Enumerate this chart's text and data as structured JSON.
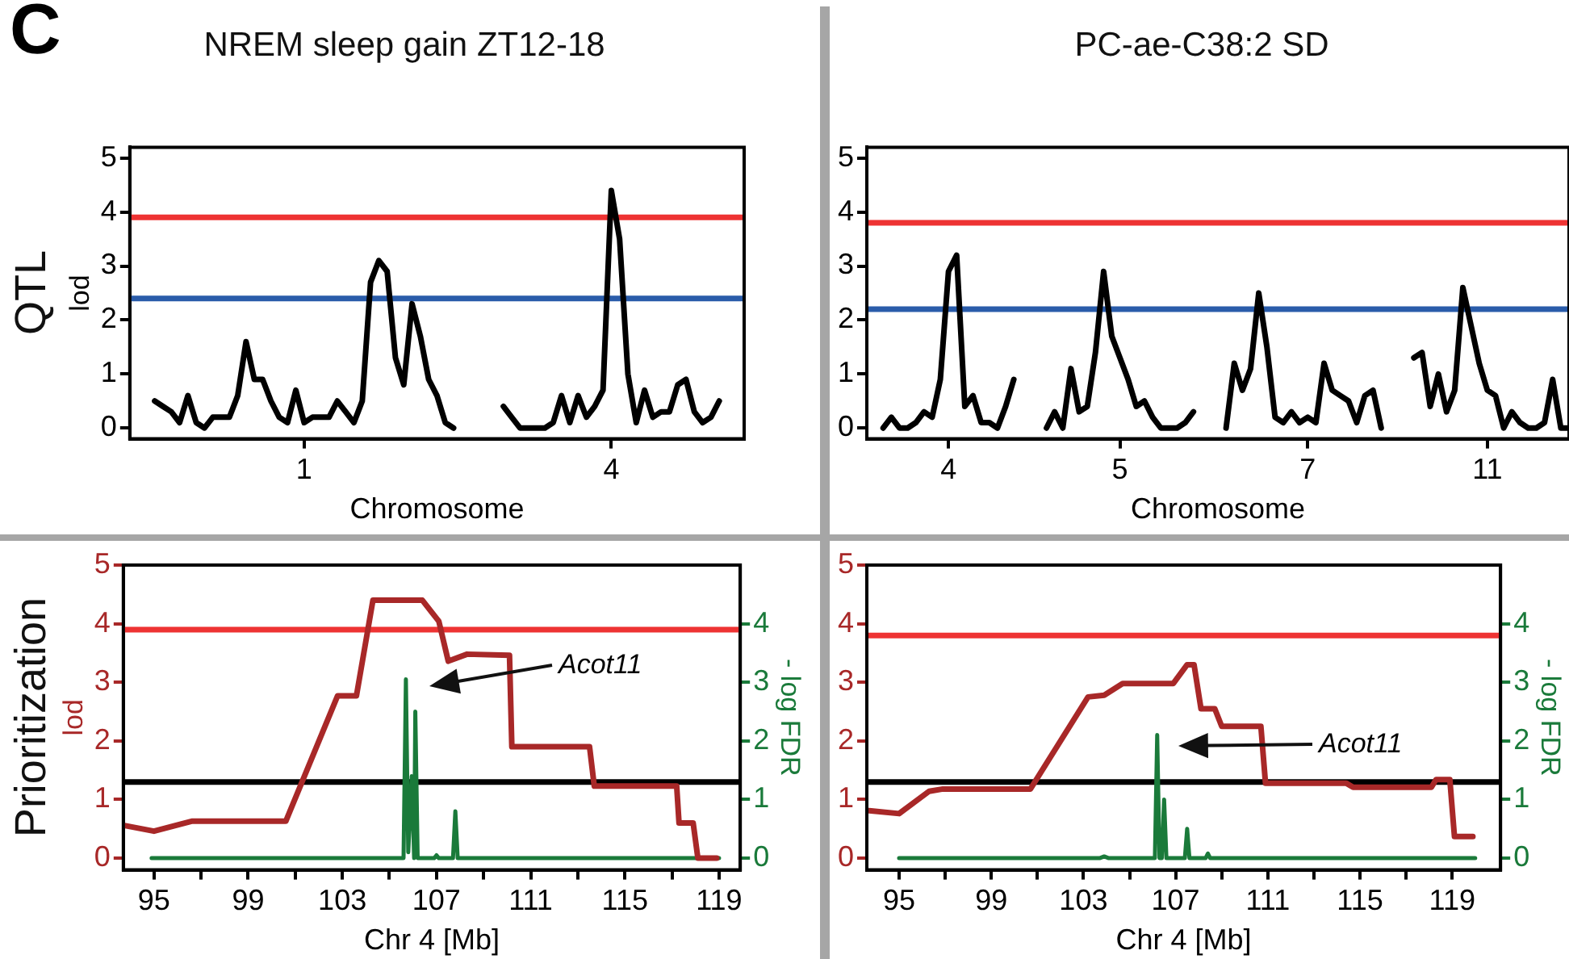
{
  "chart_data": [
    {
      "type": "line",
      "title": "NREM sleep gain ZT12-18",
      "xlabel": "Chromosome",
      "ylabel": "lod",
      "annotations": [
        "C",
        "QTL"
      ],
      "categories": [
        null,
        null,
        null,
        null,
        null,
        null,
        null,
        null,
        null,
        null,
        null,
        null,
        null,
        null,
        null,
        null,
        null,
        null,
        null,
        null,
        null,
        "1",
        null,
        null,
        null,
        null,
        null,
        null,
        null,
        null,
        null,
        null,
        null,
        null,
        null,
        null,
        null,
        null,
        null,
        null,
        null,
        null,
        null,
        null,
        null,
        null,
        null,
        null,
        null,
        null,
        null,
        null,
        null,
        null,
        null,
        null,
        null,
        null,
        "4",
        null,
        null,
        null,
        null,
        null,
        null,
        null,
        null,
        null,
        null,
        null,
        null,
        null,
        null,
        null,
        null
      ],
      "series": [
        {
          "color": "#000000",
          "values": [
            null,
            null,
            null,
            0.5,
            0.4,
            0.3,
            0.1,
            0.6,
            0.1,
            0,
            0.2,
            0.2,
            0.2,
            0.6,
            1.6,
            0.9,
            0.9,
            0.5,
            0.2,
            0.1,
            0.7,
            0.1,
            0.2,
            0.2,
            0.2,
            0.5,
            0.3,
            0.1,
            0.5,
            2.7,
            3.1,
            2.9,
            1.3,
            0.8,
            2.3,
            1.7,
            0.9,
            0.6,
            0.1,
            0,
            null,
            null,
            null,
            null,
            null,
            0.4,
            0.2,
            0,
            0,
            0,
            0,
            0.1,
            0.6,
            0.1,
            0.6,
            0.2,
            0.4,
            0.7,
            4.4,
            3.5,
            1.0,
            0.1,
            0.7,
            0.2,
            0.3,
            0.3,
            0.8,
            0.9,
            0.3,
            0.1,
            0.2,
            0.5,
            null,
            null,
            null
          ]
        }
      ],
      "ylim": [
        -0.2,
        5.2
      ],
      "yticks": [
        0,
        1,
        2,
        3,
        4,
        5
      ],
      "ref_lines": [
        {
          "axis": "y",
          "value": 3.9,
          "color": "#ee3333"
        },
        {
          "axis": "y",
          "value": 2.4,
          "color": "#2a5caa"
        }
      ]
    },
    {
      "type": "line",
      "title": "PC-ae-C38:2 SD",
      "xlabel": "Chromosome",
      "categories": [
        null,
        null,
        null,
        null,
        null,
        null,
        null,
        null,
        null,
        null,
        "4",
        null,
        null,
        null,
        null,
        null,
        null,
        null,
        null,
        null,
        null,
        null,
        null,
        null,
        null,
        null,
        null,
        null,
        null,
        null,
        null,
        "5",
        null,
        null,
        null,
        null,
        null,
        null,
        null,
        null,
        null,
        null,
        null,
        null,
        null,
        null,
        null,
        null,
        null,
        null,
        null,
        null,
        null,
        null,
        "7",
        null,
        null,
        null,
        null,
        null,
        null,
        null,
        null,
        null,
        null,
        null,
        null,
        null,
        null,
        null,
        null,
        null,
        null,
        null,
        null,
        null,
        "11",
        null,
        null,
        null,
        null,
        null,
        null,
        null,
        null,
        null,
        null
      ],
      "series": [
        {
          "color": "#000000",
          "values": [
            null,
            null,
            0,
            0.2,
            0,
            0,
            0.1,
            0.3,
            0.2,
            0.9,
            2.9,
            3.2,
            0.4,
            0.6,
            0.1,
            0.1,
            0,
            0.4,
            0.9,
            null,
            null,
            null,
            0,
            0.3,
            0,
            1.1,
            0.3,
            0.4,
            1.4,
            2.9,
            1.7,
            1.3,
            0.9,
            0.4,
            0.5,
            0.2,
            0,
            0,
            0,
            0.1,
            0.3,
            null,
            null,
            null,
            0,
            1.2,
            0.7,
            1.1,
            2.5,
            1.5,
            0.2,
            0.1,
            0.3,
            0.1,
            0.2,
            0.1,
            1.2,
            0.7,
            0.6,
            0.5,
            0.1,
            0.6,
            0.7,
            0,
            null,
            null,
            null,
            1.3,
            1.4,
            0.4,
            1.0,
            0.3,
            0.7,
            2.6,
            1.9,
            1.2,
            0.7,
            0.6,
            0,
            0.3,
            0.1,
            0,
            0,
            0.1,
            0.9,
            0,
            0
          ]
        }
      ],
      "ylim": [
        -0.2,
        5.2
      ],
      "yticks": [
        0,
        1,
        2,
        3,
        4,
        5
      ],
      "ref_lines": [
        {
          "axis": "y",
          "value": 3.8,
          "color": "#ee3333"
        },
        {
          "axis": "y",
          "value": 2.2,
          "color": "#2a5caa"
        }
      ]
    },
    {
      "type": "line",
      "xlabel": "Chr 4 [Mb]",
      "ylabel": "lod",
      "y2label": "- log FDR",
      "annotations": [
        "Prioritization",
        "Acot11"
      ],
      "series": [
        {
          "color": "#a82828",
          "x": [
            93.7,
            95.0,
            96.6,
            100.6,
            102.8,
            103.6,
            104.3,
            106.4,
            107.1,
            107.5,
            108.3,
            110.1,
            110.2,
            113.5,
            113.7,
            117.2,
            117.3,
            117.9,
            118.1,
            118.9
          ],
          "values": [
            0.56,
            0.46,
            0.63,
            0.63,
            2.77,
            2.77,
            4.4,
            4.4,
            4.04,
            3.36,
            3.48,
            3.46,
            1.9,
            1.9,
            1.23,
            1.23,
            0.6,
            0.6,
            0,
            0
          ]
        },
        {
          "color": "#1a7a3a",
          "axis": "y2",
          "x": [
            94.9,
            105.6,
            105.7,
            105.8,
            105.95,
            106.05,
            106.1,
            106.2,
            106.9,
            107.0,
            107.1,
            107.7,
            107.8,
            107.9,
            119.0
          ],
          "values": [
            0,
            0,
            3.05,
            0.1,
            1.4,
            0,
            2.5,
            0,
            0,
            0.05,
            0,
            0,
            0.8,
            0,
            0
          ]
        }
      ],
      "xlim": [
        93.7,
        119.9
      ],
      "xticks": [
        95,
        {
          "value": 97,
          "label": null
        },
        99,
        {
          "value": 101,
          "label": null
        },
        103,
        {
          "value": 105,
          "label": null
        },
        107,
        {
          "value": 109,
          "label": null
        },
        111,
        {
          "value": 113,
          "label": null
        },
        115,
        {
          "value": 117,
          "label": null
        },
        119
      ],
      "ylim": [
        -0.2,
        5.0
      ],
      "yticks": [
        0,
        1,
        2,
        3,
        4,
        5
      ],
      "y2lim": [
        -0.2,
        5.0
      ],
      "y2ticks": [
        0,
        1,
        2,
        3,
        4
      ],
      "ref_lines": [
        {
          "axis": "y",
          "value": 3.9,
          "color": "#ee3333"
        },
        {
          "axis": "y",
          "value": 1.3,
          "color": "#000000"
        }
      ]
    },
    {
      "type": "line",
      "xlabel": "Chr 4 [Mb]",
      "y2label": "- log FDR",
      "annotations": [
        "Acot11"
      ],
      "series": [
        {
          "color": "#a82828",
          "x": [
            93.7,
            95.0,
            96.3,
            96.9,
            100.7,
            103.2,
            103.9,
            104.7,
            106.9,
            107.5,
            107.8,
            108.1,
            108.7,
            109.0,
            110.7,
            110.9,
            114.4,
            114.7,
            118.1,
            118.3,
            118.9,
            119.1,
            119.9
          ],
          "values": [
            0.81,
            0.76,
            1.14,
            1.18,
            1.18,
            2.75,
            2.78,
            2.98,
            2.98,
            3.3,
            3.3,
            2.55,
            2.55,
            2.25,
            2.25,
            1.28,
            1.28,
            1.21,
            1.21,
            1.34,
            1.34,
            0.37,
            0.37
          ]
        },
        {
          "color": "#1a7a3a",
          "axis": "y2",
          "x": [
            95.0,
            103.7,
            103.9,
            104.1,
            106.1,
            106.2,
            106.3,
            106.4,
            106.5,
            106.6,
            107.4,
            107.5,
            107.6,
            108.3,
            108.4,
            108.5,
            120.0
          ],
          "values": [
            0,
            0,
            0.03,
            0,
            0,
            2.1,
            0,
            0,
            1.0,
            0,
            0,
            0.5,
            0,
            0,
            0.08,
            0,
            0
          ]
        }
      ],
      "xlim": [
        93.6,
        121.1
      ],
      "xticks": [
        95,
        {
          "value": 97,
          "label": null
        },
        99,
        {
          "value": 101,
          "label": null
        },
        103,
        {
          "value": 105,
          "label": null
        },
        107,
        {
          "value": 109,
          "label": null
        },
        111,
        {
          "value": 113,
          "label": null
        },
        115,
        {
          "value": 117,
          "label": null
        },
        119
      ],
      "ylim": [
        -0.2,
        5.0
      ],
      "yticks": [
        0,
        1,
        2,
        3,
        4,
        5
      ],
      "y2lim": [
        -0.2,
        5.0
      ],
      "y2ticks": [
        0,
        1,
        2,
        3,
        4
      ],
      "ref_lines": [
        {
          "axis": "y",
          "value": 3.8,
          "color": "#ee3333"
        },
        {
          "axis": "y",
          "value": 1.3,
          "color": "#000000"
        }
      ]
    }
  ]
}
